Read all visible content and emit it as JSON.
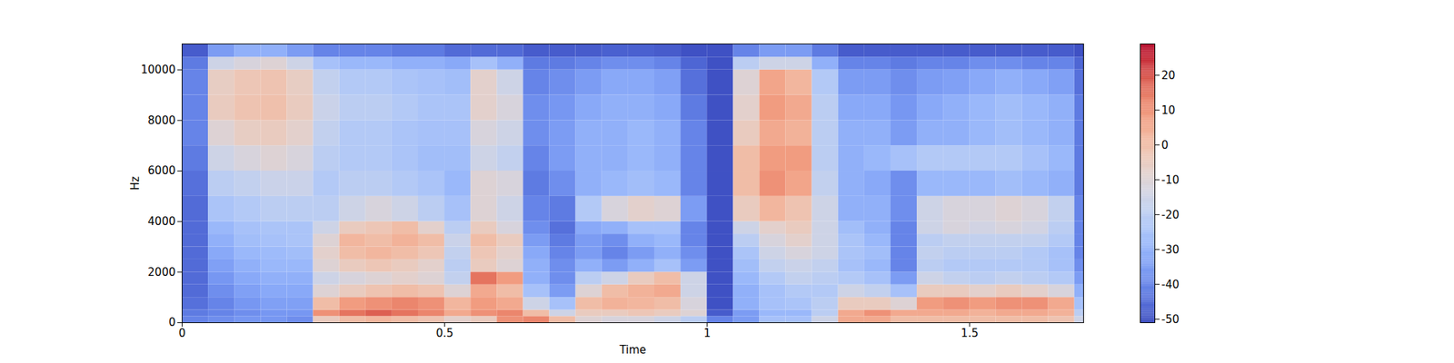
{
  "chart_data": {
    "type": "heatmap",
    "x_label": "Time",
    "y_label": "Hz",
    "xlim": [
      0,
      1.717
    ],
    "xticks": [
      0,
      0.5,
      1,
      1.5
    ],
    "ylim": [
      0,
      11025
    ],
    "yticks": [
      0,
      2000,
      4000,
      6000,
      8000,
      10000
    ],
    "colorbar": {
      "range": [
        -51,
        29
      ],
      "ticks": [
        -50,
        -40,
        -30,
        -20,
        -10,
        0,
        10,
        20
      ]
    },
    "time_edges": [
      0,
      0.05,
      0.1,
      0.15,
      0.2,
      0.25,
      0.3,
      0.35,
      0.4,
      0.45,
      0.5,
      0.55,
      0.6,
      0.65,
      0.7,
      0.75,
      0.8,
      0.85,
      0.9,
      0.95,
      1.0,
      1.05,
      1.1,
      1.15,
      1.2,
      1.25,
      1.3,
      1.35,
      1.4,
      1.45,
      1.5,
      1.55,
      1.6,
      1.65,
      1.7,
      1.717
    ],
    "freq_edges": [
      0,
      250,
      500,
      1000,
      1500,
      2000,
      2500,
      3000,
      3500,
      4000,
      5000,
      6000,
      7000,
      8000,
      9000,
      10000,
      10500,
      11025
    ],
    "cells": [
      [
        -40,
        -42,
        -44,
        -45,
        -45,
        -45,
        -45,
        -45,
        -45,
        -45,
        -44,
        -42,
        -40,
        -40,
        -40,
        -42,
        -48
      ],
      [
        -38,
        -40,
        -40,
        -38,
        -36,
        -34,
        -32,
        -30,
        -28,
        -24,
        -20,
        -15,
        -10,
        -5,
        -6,
        -15,
        -35
      ],
      [
        -36,
        -38,
        -36,
        -34,
        -32,
        -30,
        -28,
        -26,
        -25,
        -22,
        -18,
        -12,
        -6,
        -2,
        -3,
        -12,
        -30
      ],
      [
        -36,
        -36,
        -34,
        -32,
        -30,
        -28,
        -27,
        -25,
        -24,
        -20,
        -16,
        -10,
        -5,
        -1,
        -2,
        -10,
        -30
      ],
      [
        -38,
        -36,
        -34,
        -32,
        -30,
        -28,
        -26,
        -24,
        -24,
        -20,
        -16,
        -12,
        -8,
        -5,
        -6,
        -15,
        -35
      ],
      [
        -5,
        10,
        0,
        -10,
        -15,
        -10,
        -8,
        -10,
        -15,
        -20,
        -22,
        -20,
        -18,
        -16,
        -18,
        -25,
        -40
      ],
      [
        0,
        15,
        8,
        -5,
        -12,
        -5,
        0,
        2,
        -5,
        -15,
        -20,
        -22,
        -22,
        -20,
        -22,
        -28,
        -40
      ],
      [
        2,
        18,
        10,
        -2,
        -10,
        -3,
        2,
        0,
        -3,
        -12,
        -20,
        -22,
        -22,
        -20,
        -22,
        -28,
        -40
      ],
      [
        0,
        15,
        12,
        0,
        -8,
        -5,
        0,
        3,
        0,
        -15,
        -22,
        -24,
        -24,
        -22,
        -24,
        -30,
        -42
      ],
      [
        -2,
        12,
        10,
        -2,
        -10,
        -8,
        -3,
        0,
        -8,
        -20,
        -24,
        -26,
        -25,
        -24,
        -25,
        -30,
        -42
      ],
      [
        -8,
        5,
        2,
        -10,
        -18,
        -20,
        -18,
        -16,
        -20,
        -25,
        -28,
        -26,
        -25,
        -24,
        -26,
        -32,
        -45
      ],
      [
        -5,
        10,
        8,
        5,
        15,
        -5,
        -3,
        0,
        -5,
        -10,
        -10,
        -15,
        -12,
        -8,
        -8,
        -25,
        -45
      ],
      [
        10,
        12,
        5,
        0,
        8,
        -10,
        -8,
        -5,
        -12,
        -15,
        -12,
        -18,
        -15,
        -12,
        -15,
        -30,
        -45
      ],
      [
        12,
        0,
        -15,
        -25,
        -30,
        -30,
        -32,
        -35,
        -38,
        -40,
        -42,
        -40,
        -38,
        -38,
        -40,
        -42,
        -48
      ],
      [
        0,
        -15,
        -25,
        -35,
        -38,
        -38,
        -40,
        -42,
        -44,
        -42,
        -38,
        -35,
        -35,
        -36,
        -38,
        -42,
        -48
      ],
      [
        -10,
        -5,
        0,
        -10,
        -20,
        -30,
        -35,
        -35,
        -32,
        -22,
        -30,
        -30,
        -30,
        -32,
        -35,
        -40,
        -48
      ],
      [
        -12,
        -5,
        3,
        0,
        -15,
        -35,
        -40,
        -38,
        -30,
        -12,
        -28,
        -30,
        -30,
        -30,
        -32,
        -38,
        -47
      ],
      [
        -12,
        -3,
        2,
        3,
        -5,
        -30,
        -35,
        -30,
        -25,
        -8,
        -26,
        -28,
        -28,
        -30,
        -32,
        -38,
        -47
      ],
      [
        -15,
        -5,
        0,
        5,
        0,
        -25,
        -30,
        -28,
        -25,
        -10,
        -28,
        -30,
        -30,
        -32,
        -34,
        -40,
        -48
      ],
      [
        -20,
        -10,
        -12,
        -15,
        -15,
        -35,
        -38,
        -40,
        -40,
        -35,
        -40,
        -40,
        -40,
        -42,
        -44,
        -46,
        -50
      ],
      [
        -40,
        -48,
        -50,
        -50,
        -50,
        -50,
        -50,
        -50,
        -50,
        -50,
        -50,
        -50,
        -50,
        -50,
        -50,
        -50,
        -50
      ],
      [
        -35,
        -35,
        -30,
        -30,
        -28,
        -26,
        -24,
        -20,
        -15,
        -5,
        0,
        0,
        -5,
        -8,
        -10,
        -20,
        -40
      ],
      [
        -25,
        -28,
        -25,
        -25,
        -22,
        -18,
        -15,
        -12,
        -8,
        2,
        10,
        8,
        5,
        8,
        6,
        -15,
        -35
      ],
      [
        -25,
        -28,
        -24,
        -22,
        -18,
        -16,
        -12,
        -8,
        -5,
        -2,
        6,
        8,
        3,
        5,
        2,
        -15,
        -35
      ],
      [
        -15,
        -20,
        -20,
        -22,
        -20,
        -18,
        -15,
        -15,
        -15,
        -15,
        -18,
        -20,
        -20,
        -20,
        -22,
        -30,
        -42
      ],
      [
        5,
        5,
        -5,
        -15,
        -22,
        -25,
        -24,
        -24,
        -26,
        -30,
        -30,
        -30,
        -30,
        -32,
        -35,
        -40,
        -48
      ],
      [
        5,
        10,
        -5,
        -18,
        -25,
        -28,
        -26,
        -28,
        -30,
        -30,
        -32,
        -28,
        -30,
        -32,
        -35,
        -40,
        -48
      ],
      [
        0,
        5,
        -10,
        -25,
        -35,
        -40,
        -40,
        -40,
        -40,
        -38,
        -38,
        -25,
        -35,
        -36,
        -38,
        -42,
        -48
      ],
      [
        0,
        5,
        8,
        -5,
        -15,
        -20,
        -18,
        -20,
        -15,
        -15,
        -28,
        -22,
        -30,
        -32,
        -35,
        -40,
        -48
      ],
      [
        0,
        5,
        10,
        -5,
        -18,
        -22,
        -20,
        -18,
        -12,
        -12,
        -28,
        -22,
        -30,
        -30,
        -34,
        -40,
        -48
      ],
      [
        0,
        3,
        8,
        -8,
        -20,
        -22,
        -20,
        -18,
        -14,
        -12,
        -28,
        -22,
        -28,
        -28,
        -32,
        -38,
        -48
      ],
      [
        0,
        5,
        10,
        -5,
        -18,
        -22,
        -20,
        -18,
        -12,
        -10,
        -26,
        -22,
        -26,
        -26,
        -30,
        -38,
        -48
      ],
      [
        0,
        5,
        10,
        -8,
        -20,
        -22,
        -22,
        -18,
        -14,
        -12,
        -28,
        -25,
        -28,
        -28,
        -32,
        -40,
        -48
      ],
      [
        -2,
        3,
        5,
        -12,
        -22,
        -25,
        -25,
        -22,
        -20,
        -18,
        -30,
        -28,
        -30,
        -30,
        -34,
        -40,
        -48
      ],
      [
        -15,
        -20,
        -25,
        -30,
        -35,
        -38,
        -40,
        -40,
        -40,
        -40,
        -42,
        -42,
        -42,
        -42,
        -44,
        -46,
        -50
      ]
    ]
  }
}
